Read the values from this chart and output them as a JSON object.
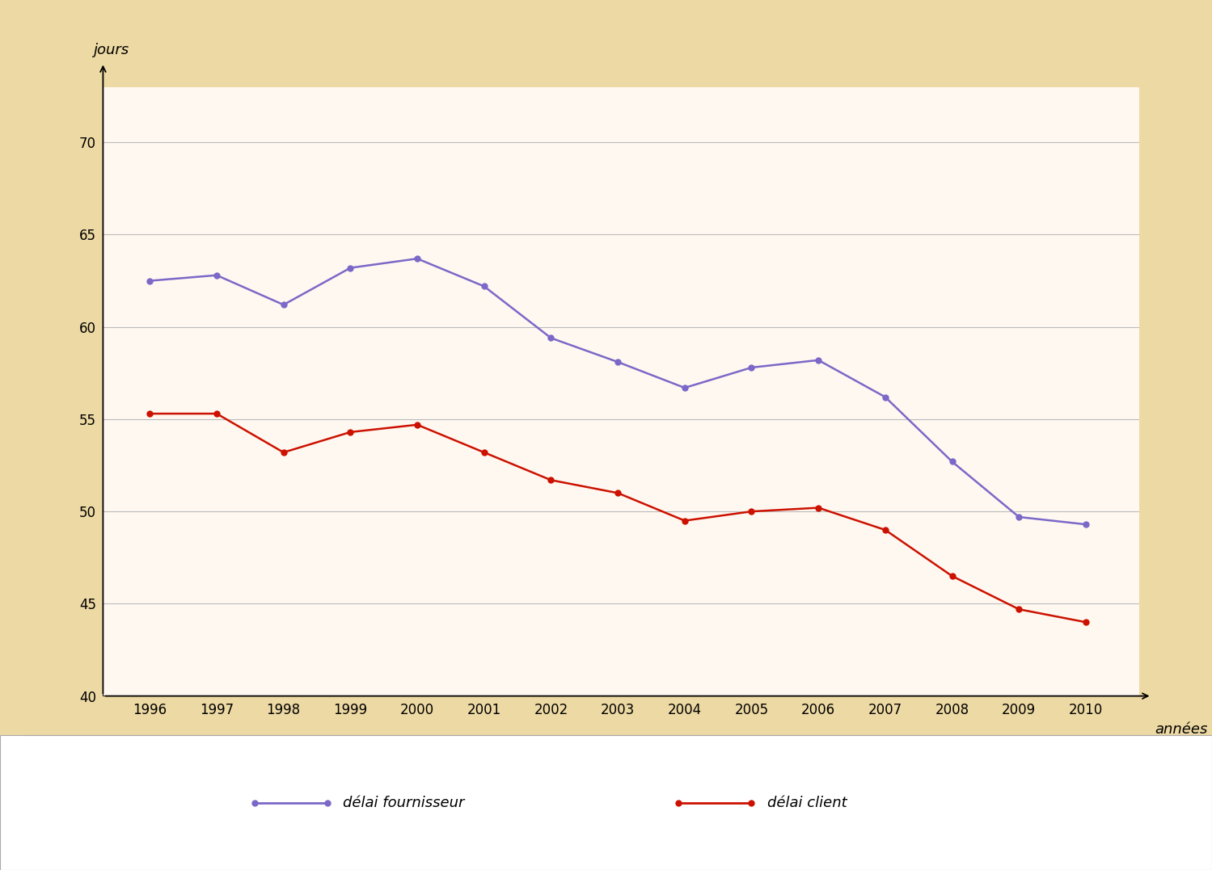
{
  "years": [
    1996,
    1997,
    1998,
    1999,
    2000,
    2001,
    2002,
    2003,
    2004,
    2005,
    2006,
    2007,
    2008,
    2009,
    2010
  ],
  "delai_fournisseur": [
    62.5,
    62.8,
    61.2,
    63.2,
    63.7,
    62.2,
    59.4,
    58.1,
    56.7,
    57.8,
    58.2,
    56.2,
    52.7,
    49.7,
    49.3
  ],
  "delai_client": [
    55.3,
    55.3,
    53.2,
    54.3,
    54.7,
    53.2,
    51.7,
    51.0,
    49.5,
    50.0,
    50.2,
    49.0,
    46.5,
    44.7,
    44.0
  ],
  "fournisseur_color": "#7B68C8",
  "client_color": "#CC1100",
  "background_outer": "#EDD9A3",
  "background_plot": "#FFF8F0",
  "grid_color": "#BBBBBB",
  "ylim": [
    40,
    73
  ],
  "yticks": [
    40,
    45,
    50,
    55,
    60,
    65,
    70
  ],
  "ylabel": "jours",
  "xlabel": "années",
  "legend_fournisseur": "délai fournisseur",
  "legend_client": "délai client",
  "marker_size": 6,
  "linewidth": 1.8
}
